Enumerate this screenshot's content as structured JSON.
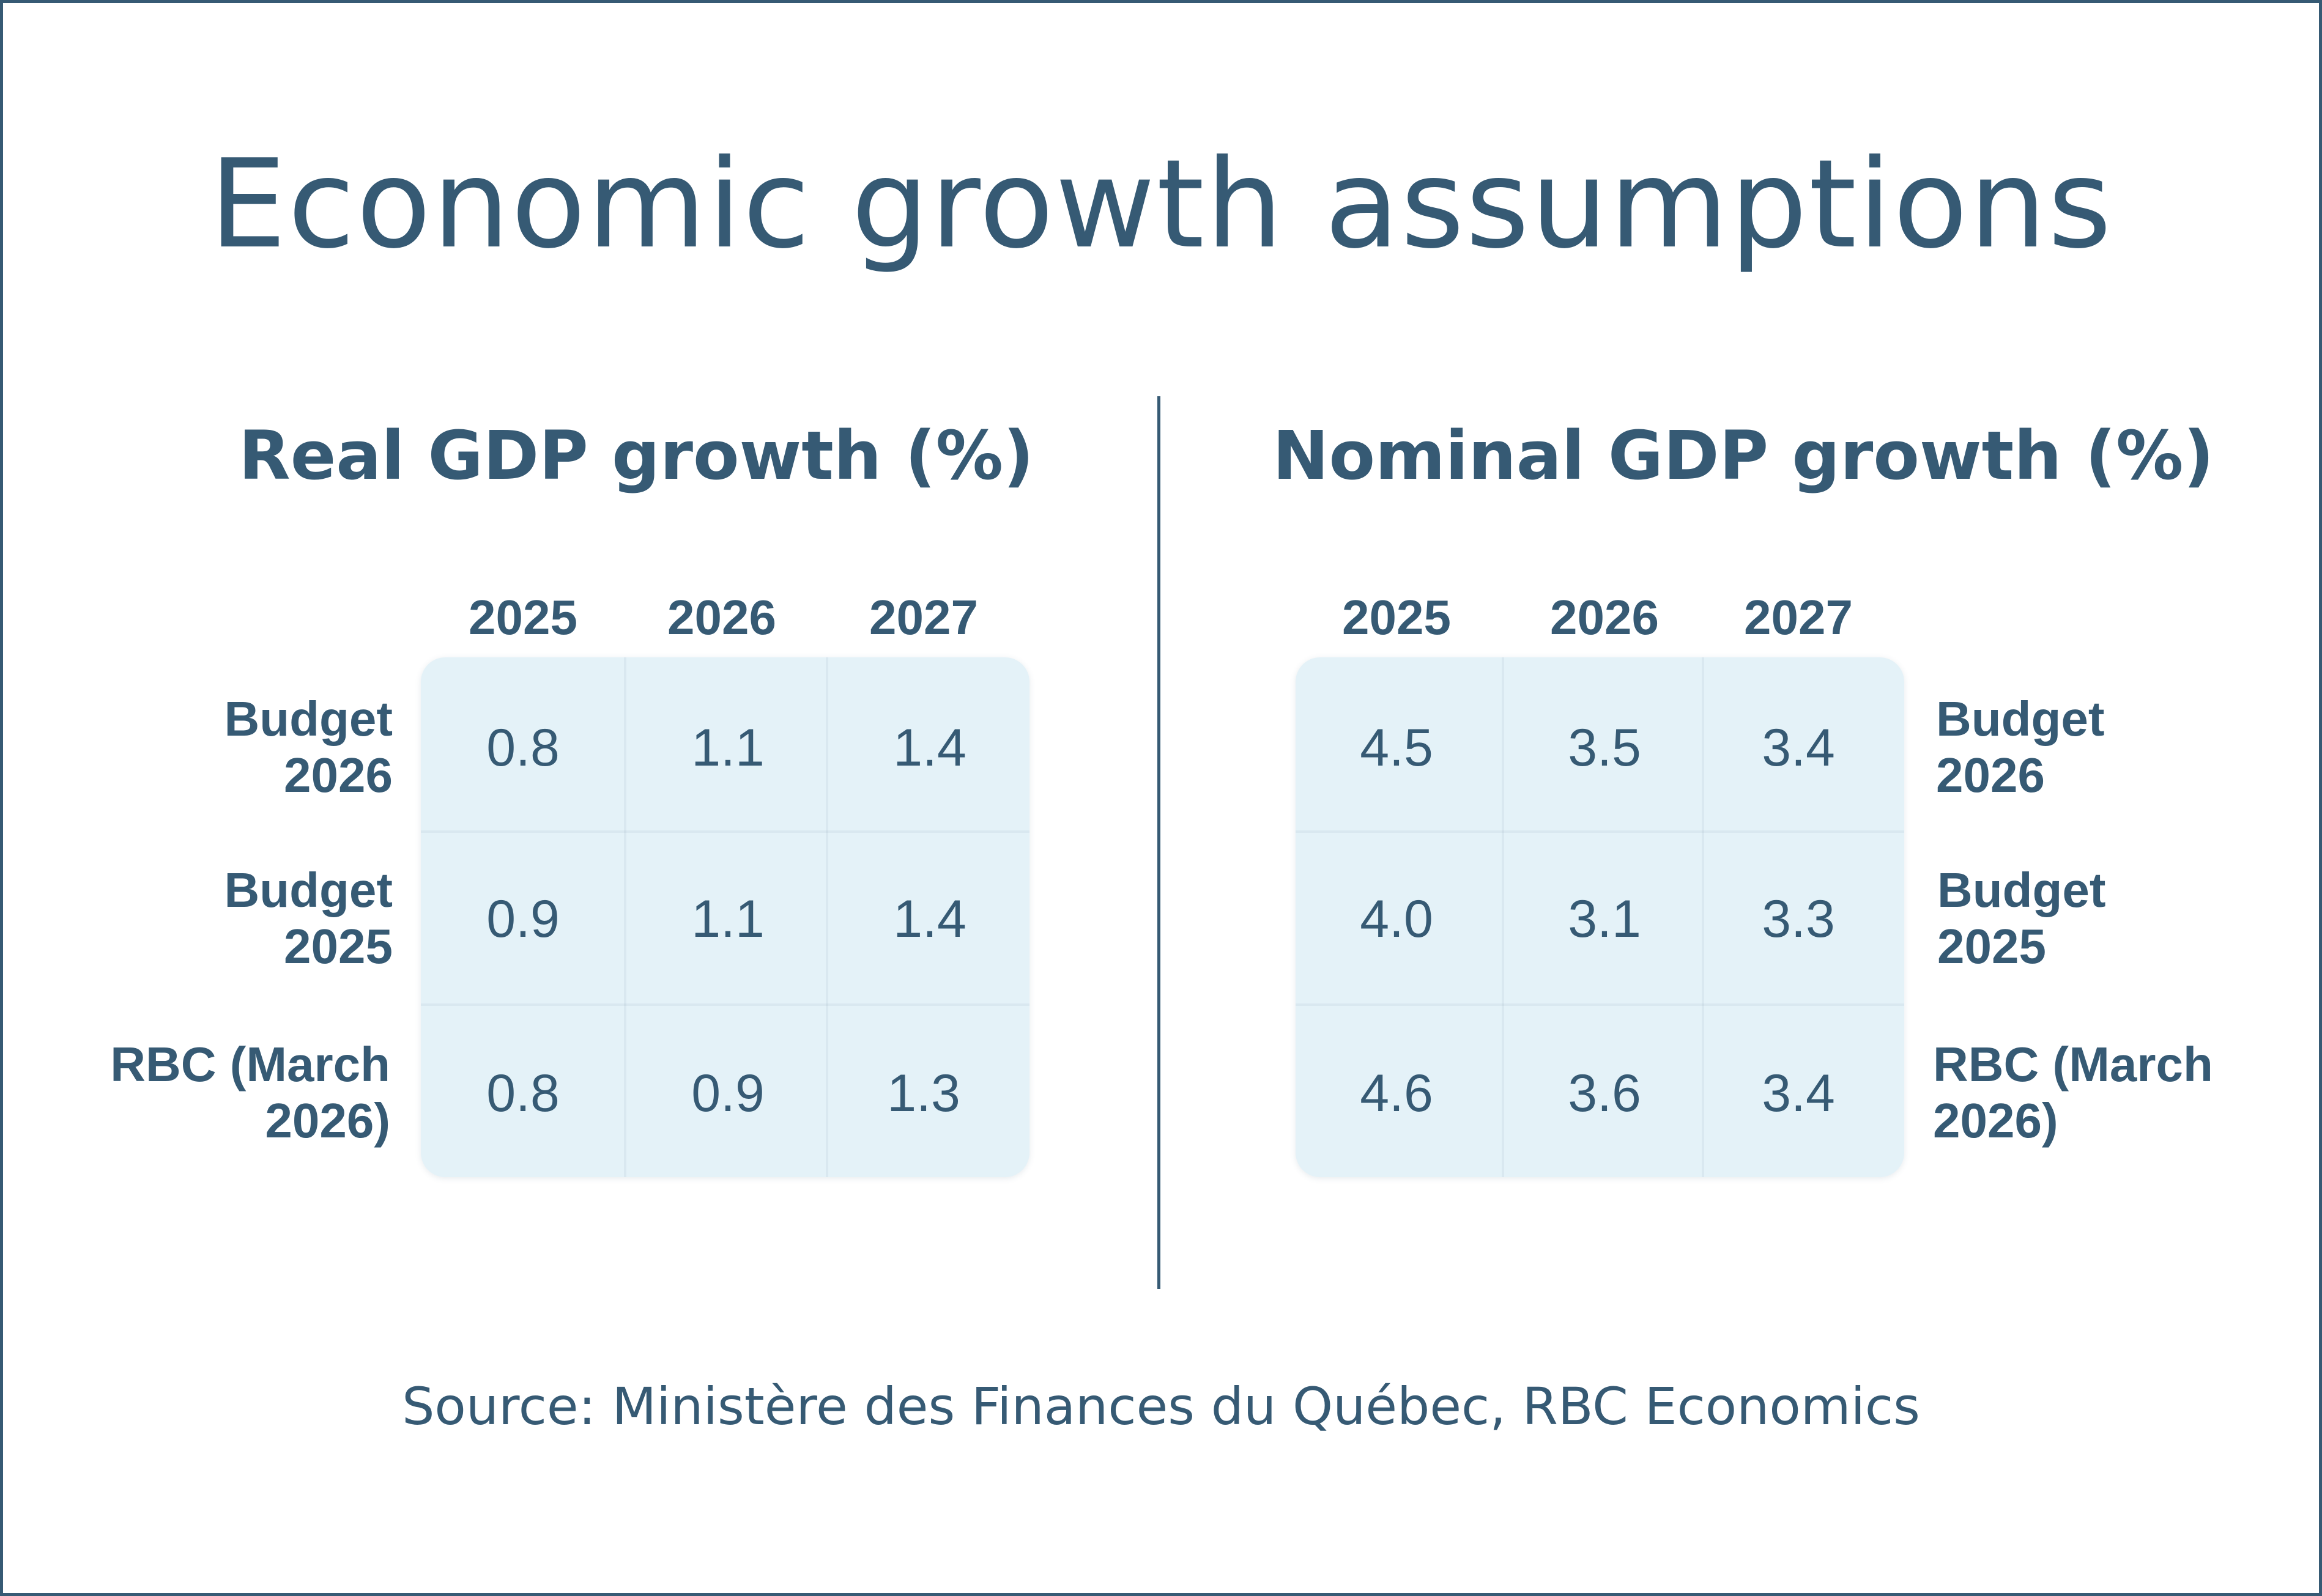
{
  "title": "Economic growth assumptions",
  "source": "Source: Ministère des Finances du Québec, RBC Economics",
  "colors": {
    "text": "#365a74",
    "cell_bg": "#e4f2f8",
    "border": "#365a74"
  },
  "chart_data": [
    {
      "type": "table",
      "title": "Real GDP growth (%)",
      "columns": [
        "2025",
        "2026",
        "2027"
      ],
      "rows": [
        {
          "label_line1": "Budget",
          "label_line2": "2026",
          "values": [
            "0.8",
            "1.1",
            "1.4"
          ]
        },
        {
          "label_line1": "Budget",
          "label_line2": "2025",
          "values": [
            "0.9",
            "1.1",
            "1.4"
          ]
        },
        {
          "label_line1": "RBC (March",
          "label_line2": "2026)",
          "values": [
            "0.8",
            "0.9",
            "1.3"
          ]
        }
      ]
    },
    {
      "type": "table",
      "title": "Nominal GDP growth (%)",
      "columns": [
        "2025",
        "2026",
        "2027"
      ],
      "rows": [
        {
          "label_line1": "Budget",
          "label_line2": "2026",
          "values": [
            "4.5",
            "3.5",
            "3.4"
          ]
        },
        {
          "label_line1": "Budget",
          "label_line2": "2025",
          "values": [
            "4.0",
            "3.1",
            "3.3"
          ]
        },
        {
          "label_line1": "RBC (March",
          "label_line2": "2026)",
          "values": [
            "4.6",
            "3.6",
            "3.4"
          ]
        }
      ]
    }
  ]
}
